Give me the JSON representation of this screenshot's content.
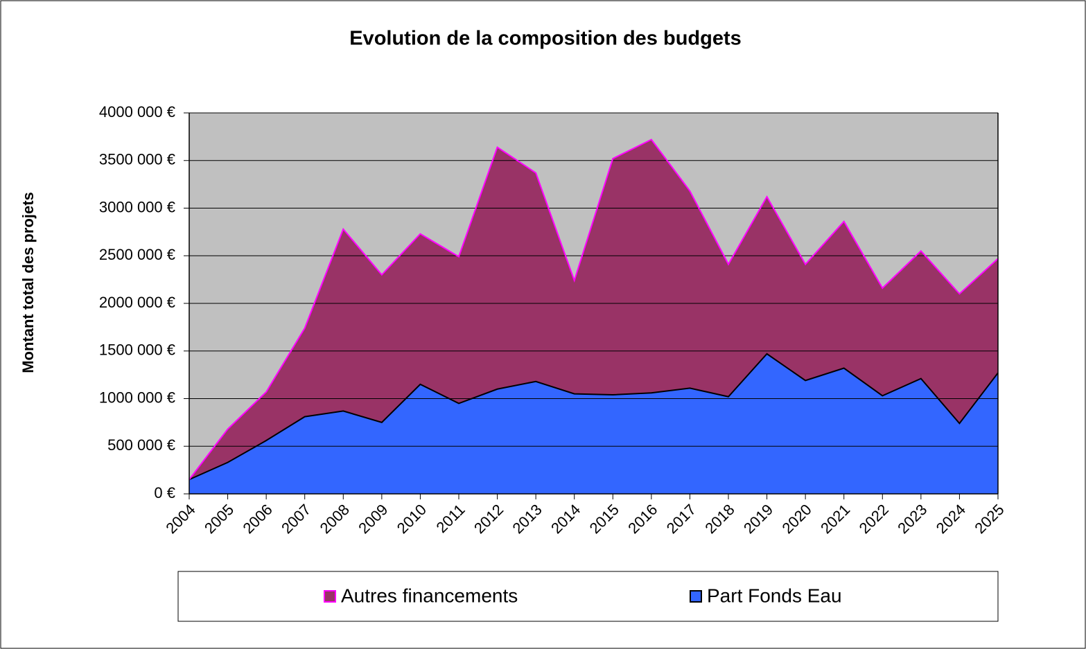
{
  "chart_data": {
    "type": "stacked_area",
    "title": "Evolution de la composition des budgets",
    "y_label": "Montant total des projets",
    "categories": [
      "2004",
      "2005",
      "2006",
      "2007",
      "2008",
      "2009",
      "2010",
      "2011",
      "2012",
      "2013",
      "2014",
      "2015",
      "2016",
      "2017",
      "2018",
      "2019",
      "2020",
      "2021",
      "2022",
      "2023",
      "2024",
      "2025"
    ],
    "series": [
      {
        "name": "Autres financements",
        "color": "#993366",
        "line_color": "#ff00ff",
        "values": [
          0,
          350000,
          510000,
          930000,
          1910000,
          1550000,
          1580000,
          1540000,
          2540000,
          2190000,
          1190000,
          2480000,
          2660000,
          2070000,
          1390000,
          1650000,
          1220000,
          1540000,
          1130000,
          1340000,
          1360000,
          1200000
        ]
      },
      {
        "name": "Part Fonds Eau",
        "color": "#3366ff",
        "line_color": "#000000",
        "values": [
          150000,
          330000,
          560000,
          810000,
          870000,
          750000,
          1150000,
          950000,
          1100000,
          1180000,
          1050000,
          1040000,
          1060000,
          1110000,
          1020000,
          1470000,
          1190000,
          1320000,
          1030000,
          1210000,
          740000,
          1270000
        ]
      }
    ],
    "ylim": [
      0,
      4000000
    ],
    "yticks": [
      {
        "value": 0,
        "label": "0 €"
      },
      {
        "value": 500000,
        "label": "500 000 €"
      },
      {
        "value": 1000000,
        "label": "1000 000 €"
      },
      {
        "value": 1500000,
        "label": "1500 000 €"
      },
      {
        "value": 2000000,
        "label": "2000 000 €"
      },
      {
        "value": 2500000,
        "label": "2500 000 €"
      },
      {
        "value": 3000000,
        "label": "3000 000 €"
      },
      {
        "value": 3500000,
        "label": "3500 000 €"
      },
      {
        "value": 4000000,
        "label": "4000 000 €"
      }
    ],
    "grid": true,
    "plot_background": "#c0c0c0",
    "legend": "bottom"
  }
}
